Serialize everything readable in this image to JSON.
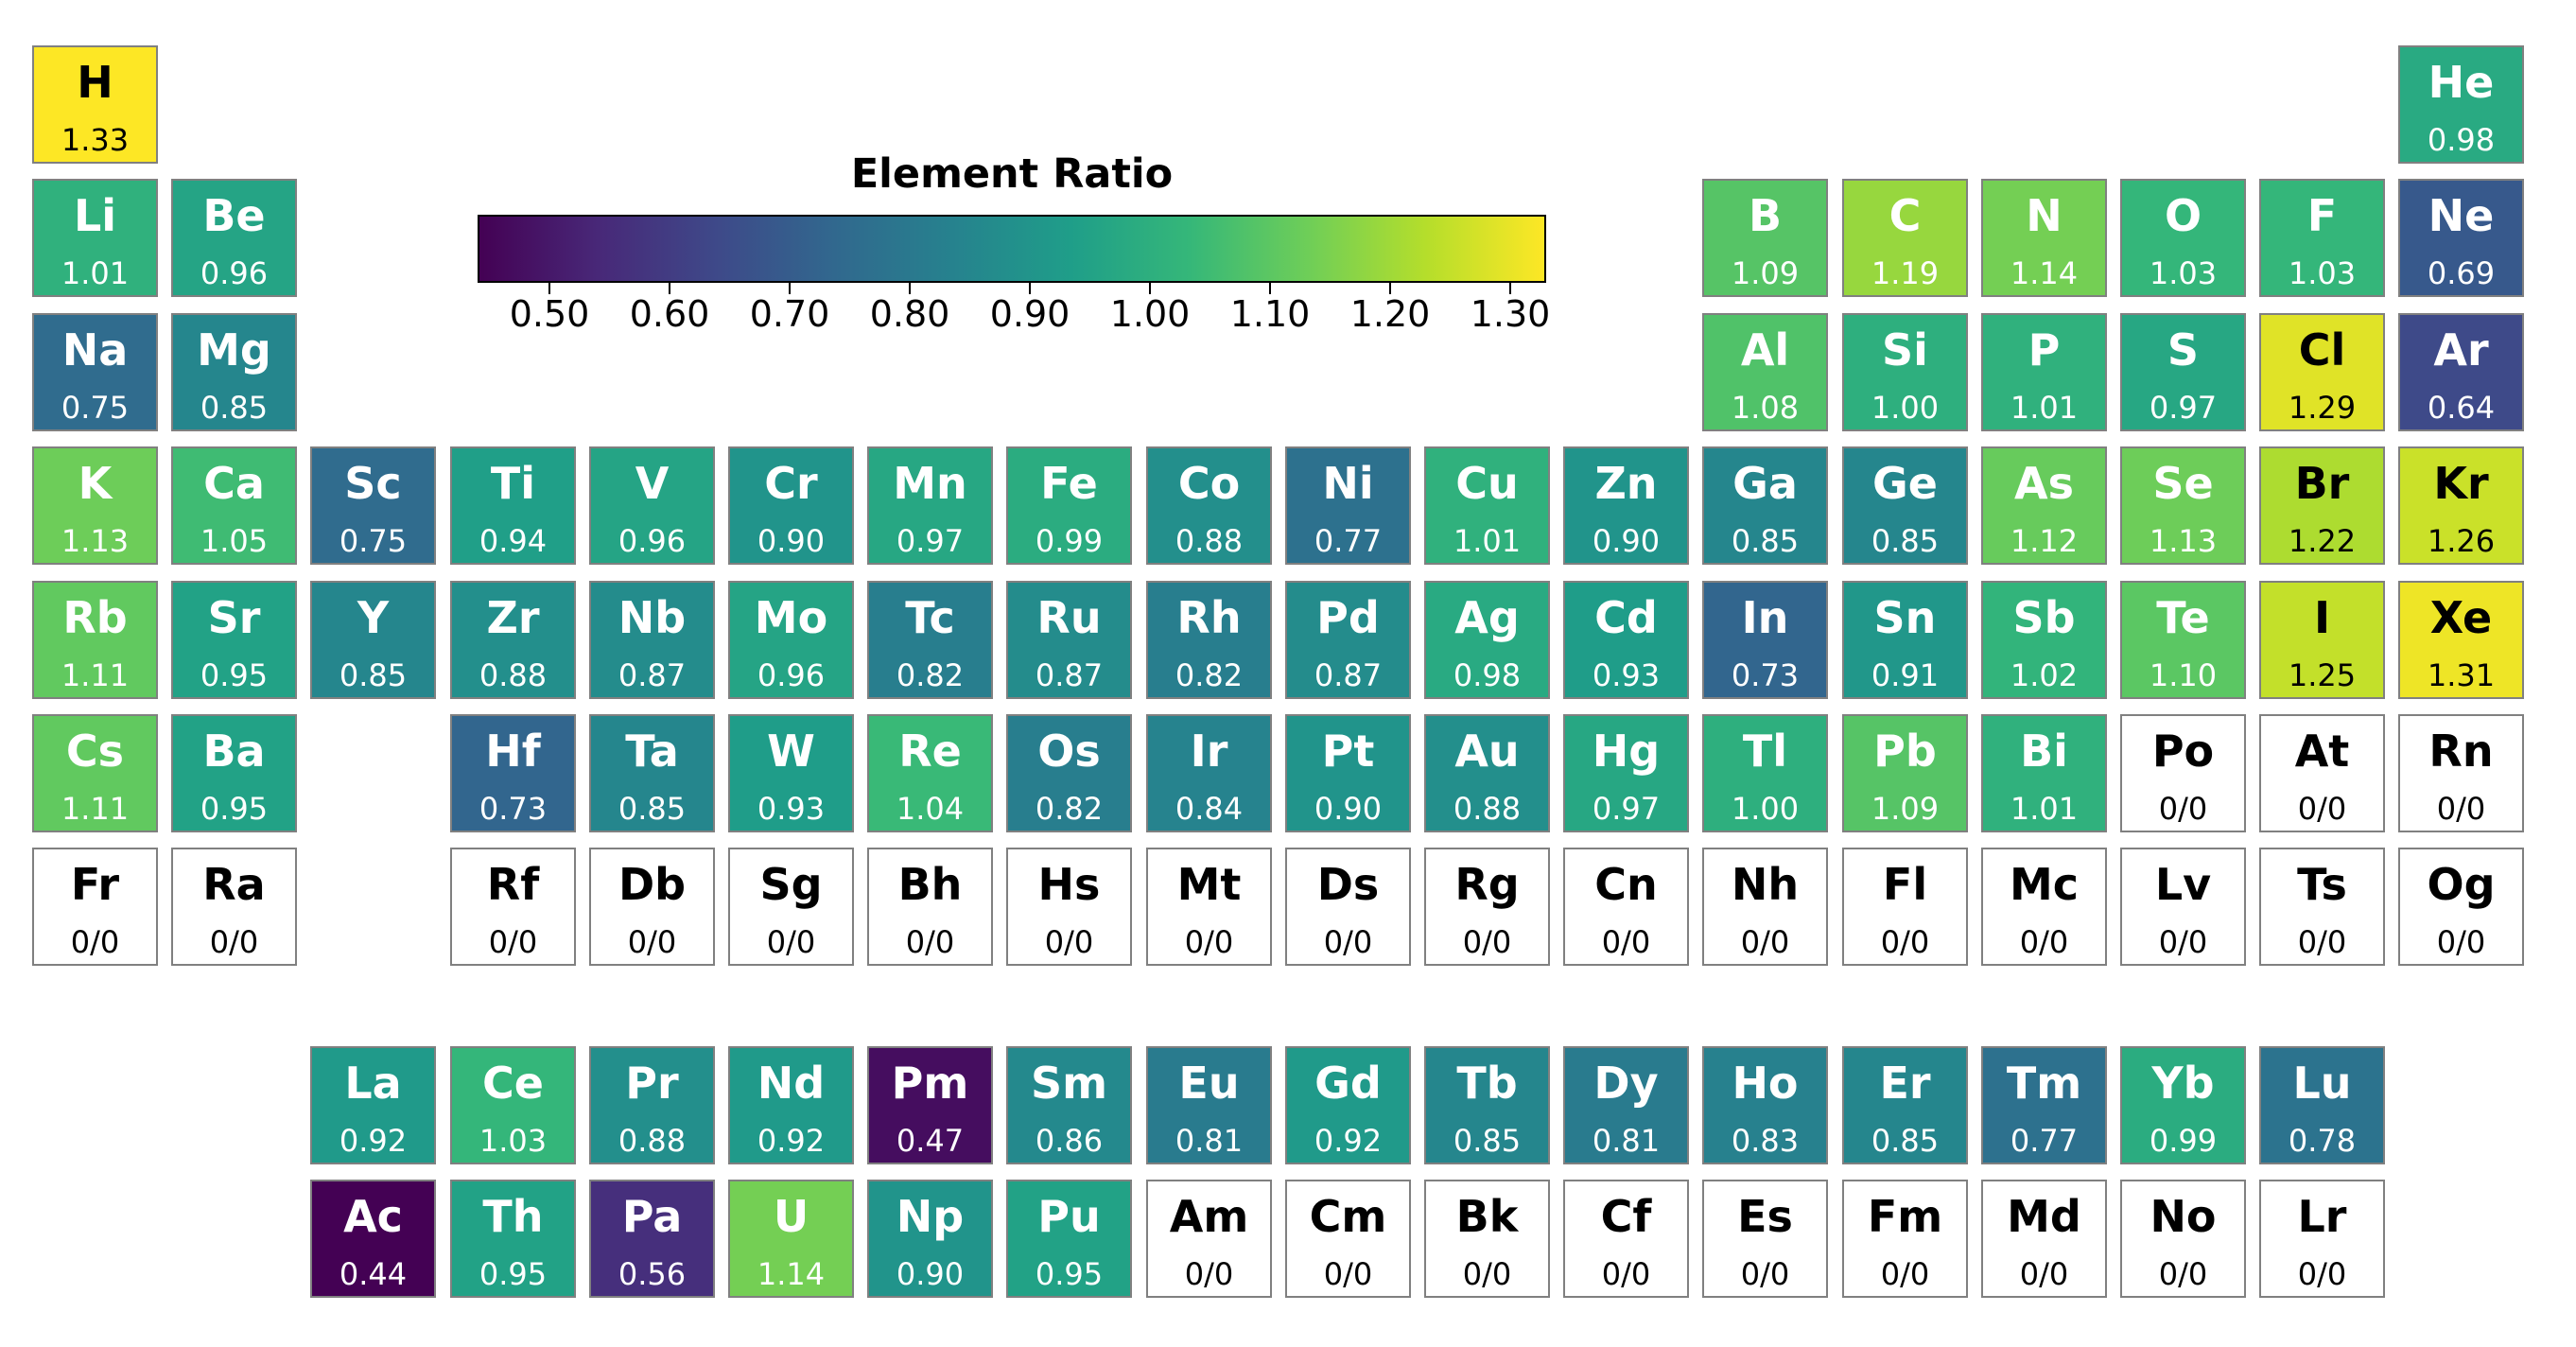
{
  "chart_data": {
    "type": "heatmap",
    "title": "",
    "colorbar": {
      "label": "Element Ratio",
      "min": 0.44,
      "max": 1.33,
      "ticks": [
        "0.50",
        "0.60",
        "0.70",
        "0.80",
        "0.90",
        "1.00",
        "1.10",
        "1.20",
        "1.30"
      ],
      "colormap": "viridis",
      "stops": [
        "#440154",
        "#482878",
        "#3e4989",
        "#31688e",
        "#26828e",
        "#1f9e89",
        "#35b779",
        "#6ece58",
        "#b5de2b",
        "#fde725"
      ]
    },
    "missing_color": "#ffffff",
    "elements": [
      {
        "symbol": "H",
        "group": 1,
        "period": 1,
        "label": "1.33",
        "value": 1.33
      },
      {
        "symbol": "He",
        "group": 18,
        "period": 1,
        "label": "0.98",
        "value": 0.98
      },
      {
        "symbol": "Li",
        "group": 1,
        "period": 2,
        "label": "1.01",
        "value": 1.01
      },
      {
        "symbol": "Be",
        "group": 2,
        "period": 2,
        "label": "0.96",
        "value": 0.96
      },
      {
        "symbol": "B",
        "group": 13,
        "period": 2,
        "label": "1.09",
        "value": 1.09
      },
      {
        "symbol": "C",
        "group": 14,
        "period": 2,
        "label": "1.19",
        "value": 1.19
      },
      {
        "symbol": "N",
        "group": 15,
        "period": 2,
        "label": "1.14",
        "value": 1.14
      },
      {
        "symbol": "O",
        "group": 16,
        "period": 2,
        "label": "1.03",
        "value": 1.03
      },
      {
        "symbol": "F",
        "group": 17,
        "period": 2,
        "label": "1.03",
        "value": 1.03
      },
      {
        "symbol": "Ne",
        "group": 18,
        "period": 2,
        "label": "0.69",
        "value": 0.69
      },
      {
        "symbol": "Na",
        "group": 1,
        "period": 3,
        "label": "0.75",
        "value": 0.75
      },
      {
        "symbol": "Mg",
        "group": 2,
        "period": 3,
        "label": "0.85",
        "value": 0.85
      },
      {
        "symbol": "Al",
        "group": 13,
        "period": 3,
        "label": "1.08",
        "value": 1.08
      },
      {
        "symbol": "Si",
        "group": 14,
        "period": 3,
        "label": "1.00",
        "value": 1.0
      },
      {
        "symbol": "P",
        "group": 15,
        "period": 3,
        "label": "1.01",
        "value": 1.01
      },
      {
        "symbol": "S",
        "group": 16,
        "period": 3,
        "label": "0.97",
        "value": 0.97
      },
      {
        "symbol": "Cl",
        "group": 17,
        "period": 3,
        "label": "1.29",
        "value": 1.29
      },
      {
        "symbol": "Ar",
        "group": 18,
        "period": 3,
        "label": "0.64",
        "value": 0.64
      },
      {
        "symbol": "K",
        "group": 1,
        "period": 4,
        "label": "1.13",
        "value": 1.13
      },
      {
        "symbol": "Ca",
        "group": 2,
        "period": 4,
        "label": "1.05",
        "value": 1.05
      },
      {
        "symbol": "Sc",
        "group": 3,
        "period": 4,
        "label": "0.75",
        "value": 0.75
      },
      {
        "symbol": "Ti",
        "group": 4,
        "period": 4,
        "label": "0.94",
        "value": 0.94
      },
      {
        "symbol": "V",
        "group": 5,
        "period": 4,
        "label": "0.96",
        "value": 0.96
      },
      {
        "symbol": "Cr",
        "group": 6,
        "period": 4,
        "label": "0.90",
        "value": 0.9
      },
      {
        "symbol": "Mn",
        "group": 7,
        "period": 4,
        "label": "0.97",
        "value": 0.97
      },
      {
        "symbol": "Fe",
        "group": 8,
        "period": 4,
        "label": "0.99",
        "value": 0.99
      },
      {
        "symbol": "Co",
        "group": 9,
        "period": 4,
        "label": "0.88",
        "value": 0.88
      },
      {
        "symbol": "Ni",
        "group": 10,
        "period": 4,
        "label": "0.77",
        "value": 0.77
      },
      {
        "symbol": "Cu",
        "group": 11,
        "period": 4,
        "label": "1.01",
        "value": 1.01
      },
      {
        "symbol": "Zn",
        "group": 12,
        "period": 4,
        "label": "0.90",
        "value": 0.9
      },
      {
        "symbol": "Ga",
        "group": 13,
        "period": 4,
        "label": "0.85",
        "value": 0.85
      },
      {
        "symbol": "Ge",
        "group": 14,
        "period": 4,
        "label": "0.85",
        "value": 0.85
      },
      {
        "symbol": "As",
        "group": 15,
        "period": 4,
        "label": "1.12",
        "value": 1.12
      },
      {
        "symbol": "Se",
        "group": 16,
        "period": 4,
        "label": "1.13",
        "value": 1.13
      },
      {
        "symbol": "Br",
        "group": 17,
        "period": 4,
        "label": "1.22",
        "value": 1.22
      },
      {
        "symbol": "Kr",
        "group": 18,
        "period": 4,
        "label": "1.26",
        "value": 1.26
      },
      {
        "symbol": "Rb",
        "group": 1,
        "period": 5,
        "label": "1.11",
        "value": 1.11
      },
      {
        "symbol": "Sr",
        "group": 2,
        "period": 5,
        "label": "0.95",
        "value": 0.95
      },
      {
        "symbol": "Y",
        "group": 3,
        "period": 5,
        "label": "0.85",
        "value": 0.85
      },
      {
        "symbol": "Zr",
        "group": 4,
        "period": 5,
        "label": "0.88",
        "value": 0.88
      },
      {
        "symbol": "Nb",
        "group": 5,
        "period": 5,
        "label": "0.87",
        "value": 0.87
      },
      {
        "symbol": "Mo",
        "group": 6,
        "period": 5,
        "label": "0.96",
        "value": 0.96
      },
      {
        "symbol": "Tc",
        "group": 7,
        "period": 5,
        "label": "0.82",
        "value": 0.82
      },
      {
        "symbol": "Ru",
        "group": 8,
        "period": 5,
        "label": "0.87",
        "value": 0.87
      },
      {
        "symbol": "Rh",
        "group": 9,
        "period": 5,
        "label": "0.82",
        "value": 0.82
      },
      {
        "symbol": "Pd",
        "group": 10,
        "period": 5,
        "label": "0.87",
        "value": 0.87
      },
      {
        "symbol": "Ag",
        "group": 11,
        "period": 5,
        "label": "0.98",
        "value": 0.98
      },
      {
        "symbol": "Cd",
        "group": 12,
        "period": 5,
        "label": "0.93",
        "value": 0.93
      },
      {
        "symbol": "In",
        "group": 13,
        "period": 5,
        "label": "0.73",
        "value": 0.73
      },
      {
        "symbol": "Sn",
        "group": 14,
        "period": 5,
        "label": "0.91",
        "value": 0.91
      },
      {
        "symbol": "Sb",
        "group": 15,
        "period": 5,
        "label": "1.02",
        "value": 1.02
      },
      {
        "symbol": "Te",
        "group": 16,
        "period": 5,
        "label": "1.10",
        "value": 1.1
      },
      {
        "symbol": "I",
        "group": 17,
        "period": 5,
        "label": "1.25",
        "value": 1.25
      },
      {
        "symbol": "Xe",
        "group": 18,
        "period": 5,
        "label": "1.31",
        "value": 1.31
      },
      {
        "symbol": "Cs",
        "group": 1,
        "period": 6,
        "label": "1.11",
        "value": 1.11
      },
      {
        "symbol": "Ba",
        "group": 2,
        "period": 6,
        "label": "0.95",
        "value": 0.95
      },
      {
        "symbol": "Hf",
        "group": 4,
        "period": 6,
        "label": "0.73",
        "value": 0.73
      },
      {
        "symbol": "Ta",
        "group": 5,
        "period": 6,
        "label": "0.85",
        "value": 0.85
      },
      {
        "symbol": "W",
        "group": 6,
        "period": 6,
        "label": "0.93",
        "value": 0.93
      },
      {
        "symbol": "Re",
        "group": 7,
        "period": 6,
        "label": "1.04",
        "value": 1.04
      },
      {
        "symbol": "Os",
        "group": 8,
        "period": 6,
        "label": "0.82",
        "value": 0.82
      },
      {
        "symbol": "Ir",
        "group": 9,
        "period": 6,
        "label": "0.84",
        "value": 0.84
      },
      {
        "symbol": "Pt",
        "group": 10,
        "period": 6,
        "label": "0.90",
        "value": 0.9
      },
      {
        "symbol": "Au",
        "group": 11,
        "period": 6,
        "label": "0.88",
        "value": 0.88
      },
      {
        "symbol": "Hg",
        "group": 12,
        "period": 6,
        "label": "0.97",
        "value": 0.97
      },
      {
        "symbol": "Tl",
        "group": 13,
        "period": 6,
        "label": "1.00",
        "value": 1.0
      },
      {
        "symbol": "Pb",
        "group": 14,
        "period": 6,
        "label": "1.09",
        "value": 1.09
      },
      {
        "symbol": "Bi",
        "group": 15,
        "period": 6,
        "label": "1.01",
        "value": 1.01
      },
      {
        "symbol": "Po",
        "group": 16,
        "period": 6,
        "label": "0/0",
        "value": null
      },
      {
        "symbol": "At",
        "group": 17,
        "period": 6,
        "label": "0/0",
        "value": null
      },
      {
        "symbol": "Rn",
        "group": 18,
        "period": 6,
        "label": "0/0",
        "value": null
      },
      {
        "symbol": "Fr",
        "group": 1,
        "period": 7,
        "label": "0/0",
        "value": null
      },
      {
        "symbol": "Ra",
        "group": 2,
        "period": 7,
        "label": "0/0",
        "value": null
      },
      {
        "symbol": "Rf",
        "group": 4,
        "period": 7,
        "label": "0/0",
        "value": null
      },
      {
        "symbol": "Db",
        "group": 5,
        "period": 7,
        "label": "0/0",
        "value": null
      },
      {
        "symbol": "Sg",
        "group": 6,
        "period": 7,
        "label": "0/0",
        "value": null
      },
      {
        "symbol": "Bh",
        "group": 7,
        "period": 7,
        "label": "0/0",
        "value": null
      },
      {
        "symbol": "Hs",
        "group": 8,
        "period": 7,
        "label": "0/0",
        "value": null
      },
      {
        "symbol": "Mt",
        "group": 9,
        "period": 7,
        "label": "0/0",
        "value": null
      },
      {
        "symbol": "Ds",
        "group": 10,
        "period": 7,
        "label": "0/0",
        "value": null
      },
      {
        "symbol": "Rg",
        "group": 11,
        "period": 7,
        "label": "0/0",
        "value": null
      },
      {
        "symbol": "Cn",
        "group": 12,
        "period": 7,
        "label": "0/0",
        "value": null
      },
      {
        "symbol": "Nh",
        "group": 13,
        "period": 7,
        "label": "0/0",
        "value": null
      },
      {
        "symbol": "Fl",
        "group": 14,
        "period": 7,
        "label": "0/0",
        "value": null
      },
      {
        "symbol": "Mc",
        "group": 15,
        "period": 7,
        "label": "0/0",
        "value": null
      },
      {
        "symbol": "Lv",
        "group": 16,
        "period": 7,
        "label": "0/0",
        "value": null
      },
      {
        "symbol": "Ts",
        "group": 17,
        "period": 7,
        "label": "0/0",
        "value": null
      },
      {
        "symbol": "Og",
        "group": 18,
        "period": 7,
        "label": "0/0",
        "value": null
      },
      {
        "symbol": "La",
        "series": "lanthanide",
        "index": 0,
        "label": "0.92",
        "value": 0.92
      },
      {
        "symbol": "Ce",
        "series": "lanthanide",
        "index": 1,
        "label": "1.03",
        "value": 1.03
      },
      {
        "symbol": "Pr",
        "series": "lanthanide",
        "index": 2,
        "label": "0.88",
        "value": 0.88
      },
      {
        "symbol": "Nd",
        "series": "lanthanide",
        "index": 3,
        "label": "0.92",
        "value": 0.92
      },
      {
        "symbol": "Pm",
        "series": "lanthanide",
        "index": 4,
        "label": "0.47",
        "value": 0.47
      },
      {
        "symbol": "Sm",
        "series": "lanthanide",
        "index": 5,
        "label": "0.86",
        "value": 0.86
      },
      {
        "symbol": "Eu",
        "series": "lanthanide",
        "index": 6,
        "label": "0.81",
        "value": 0.81
      },
      {
        "symbol": "Gd",
        "series": "lanthanide",
        "index": 7,
        "label": "0.92",
        "value": 0.92
      },
      {
        "symbol": "Tb",
        "series": "lanthanide",
        "index": 8,
        "label": "0.85",
        "value": 0.85
      },
      {
        "symbol": "Dy",
        "series": "lanthanide",
        "index": 9,
        "label": "0.81",
        "value": 0.81
      },
      {
        "symbol": "Ho",
        "series": "lanthanide",
        "index": 10,
        "label": "0.83",
        "value": 0.83
      },
      {
        "symbol": "Er",
        "series": "lanthanide",
        "index": 11,
        "label": "0.85",
        "value": 0.85
      },
      {
        "symbol": "Tm",
        "series": "lanthanide",
        "index": 12,
        "label": "0.77",
        "value": 0.77
      },
      {
        "symbol": "Yb",
        "series": "lanthanide",
        "index": 13,
        "label": "0.99",
        "value": 0.99
      },
      {
        "symbol": "Lu",
        "series": "lanthanide",
        "index": 14,
        "label": "0.78",
        "value": 0.78
      },
      {
        "symbol": "Ac",
        "series": "actinide",
        "index": 0,
        "label": "0.44",
        "value": 0.44
      },
      {
        "symbol": "Th",
        "series": "actinide",
        "index": 1,
        "label": "0.95",
        "value": 0.95
      },
      {
        "symbol": "Pa",
        "series": "actinide",
        "index": 2,
        "label": "0.56",
        "value": 0.56
      },
      {
        "symbol": "U",
        "series": "actinide",
        "index": 3,
        "label": "1.14",
        "value": 1.14
      },
      {
        "symbol": "Np",
        "series": "actinide",
        "index": 4,
        "label": "0.90",
        "value": 0.9
      },
      {
        "symbol": "Pu",
        "series": "actinide",
        "index": 5,
        "label": "0.95",
        "value": 0.95
      },
      {
        "symbol": "Am",
        "series": "actinide",
        "index": 6,
        "label": "0/0",
        "value": null
      },
      {
        "symbol": "Cm",
        "series": "actinide",
        "index": 7,
        "label": "0/0",
        "value": null
      },
      {
        "symbol": "Bk",
        "series": "actinide",
        "index": 8,
        "label": "0/0",
        "value": null
      },
      {
        "symbol": "Cf",
        "series": "actinide",
        "index": 9,
        "label": "0/0",
        "value": null
      },
      {
        "symbol": "Es",
        "series": "actinide",
        "index": 10,
        "label": "0/0",
        "value": null
      },
      {
        "symbol": "Fm",
        "series": "actinide",
        "index": 11,
        "label": "0/0",
        "value": null
      },
      {
        "symbol": "Md",
        "series": "actinide",
        "index": 12,
        "label": "0/0",
        "value": null
      },
      {
        "symbol": "No",
        "series": "actinide",
        "index": 13,
        "label": "0/0",
        "value": null
      },
      {
        "symbol": "Lr",
        "series": "actinide",
        "index": 14,
        "label": "0/0",
        "value": null
      }
    ]
  }
}
